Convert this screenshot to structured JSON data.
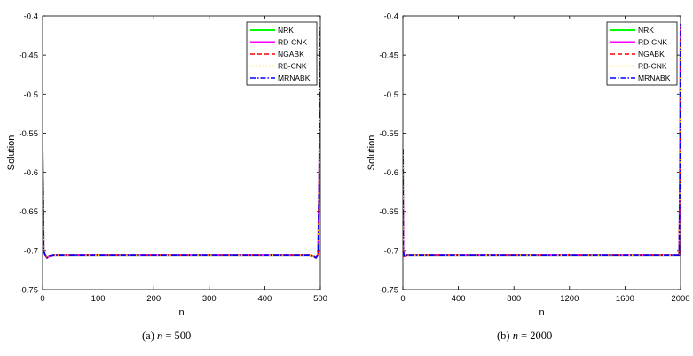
{
  "chart_data": [
    {
      "type": "line",
      "caption": {
        "label": "(a)",
        "var": "n",
        "rest": "= 500"
      },
      "xlabel": "n",
      "ylabel": "Solution",
      "xlim": [
        0,
        500
      ],
      "ylim": [
        -0.75,
        -0.4
      ],
      "xticks": [
        0,
        100,
        200,
        300,
        400,
        500
      ],
      "yticks": [
        -0.4,
        -0.45,
        -0.5,
        -0.55,
        -0.6,
        -0.65,
        -0.7,
        -0.75
      ],
      "grid": false,
      "legend_position": "top-right",
      "series": [
        {
          "name": "NRK",
          "color": "#00ff00",
          "style": "solid",
          "x": [
            0,
            1,
            2,
            4,
            8,
            12,
            20,
            100,
            200,
            300,
            400,
            480,
            488,
            492,
            496,
            498,
            499,
            500
          ],
          "y": [
            -0.57,
            -0.62,
            -0.7,
            -0.705,
            -0.709,
            -0.707,
            -0.706,
            -0.706,
            -0.706,
            -0.706,
            -0.706,
            -0.706,
            -0.707,
            -0.709,
            -0.705,
            -0.6,
            -0.5,
            -0.415
          ]
        },
        {
          "name": "RD-CNK",
          "color": "#ff00ff",
          "style": "solid",
          "x": [
            0,
            1,
            2,
            4,
            8,
            12,
            20,
            100,
            200,
            300,
            400,
            480,
            488,
            492,
            496,
            498,
            499,
            500
          ],
          "y": [
            -0.57,
            -0.62,
            -0.7,
            -0.705,
            -0.709,
            -0.707,
            -0.706,
            -0.706,
            -0.706,
            -0.706,
            -0.706,
            -0.706,
            -0.707,
            -0.709,
            -0.705,
            -0.6,
            -0.5,
            -0.415
          ]
        },
        {
          "name": "NGABK",
          "color": "#ff0000",
          "style": "dashed",
          "x": [
            0,
            1,
            2,
            4,
            8,
            12,
            20,
            100,
            200,
            300,
            400,
            480,
            488,
            492,
            496,
            498,
            499,
            500
          ],
          "y": [
            -0.57,
            -0.62,
            -0.7,
            -0.705,
            -0.709,
            -0.707,
            -0.706,
            -0.706,
            -0.706,
            -0.706,
            -0.706,
            -0.706,
            -0.707,
            -0.709,
            -0.705,
            -0.6,
            -0.5,
            -0.415
          ]
        },
        {
          "name": "RB-CNK",
          "color": "#ffd700",
          "style": "dotted",
          "x": [
            0,
            1,
            2,
            4,
            8,
            12,
            20,
            100,
            200,
            300,
            400,
            480,
            488,
            492,
            496,
            498,
            499,
            500
          ],
          "y": [
            -0.57,
            -0.62,
            -0.7,
            -0.705,
            -0.709,
            -0.707,
            -0.706,
            -0.706,
            -0.706,
            -0.706,
            -0.706,
            -0.706,
            -0.707,
            -0.709,
            -0.705,
            -0.6,
            -0.5,
            -0.415
          ]
        },
        {
          "name": "MRNABK",
          "color": "#0000ff",
          "style": "dashdot",
          "x": [
            0,
            1,
            2,
            4,
            8,
            12,
            20,
            100,
            200,
            300,
            400,
            480,
            488,
            492,
            496,
            498,
            499,
            500
          ],
          "y": [
            -0.57,
            -0.62,
            -0.7,
            -0.705,
            -0.709,
            -0.707,
            -0.706,
            -0.706,
            -0.706,
            -0.706,
            -0.706,
            -0.706,
            -0.707,
            -0.709,
            -0.705,
            -0.6,
            -0.5,
            -0.415
          ]
        }
      ]
    },
    {
      "type": "line",
      "caption": {
        "label": "(b)",
        "var": "n",
        "rest": "= 2000"
      },
      "xlabel": "n",
      "ylabel": "Solution",
      "xlim": [
        0,
        2000
      ],
      "ylim": [
        -0.75,
        -0.4
      ],
      "xticks": [
        0,
        400,
        800,
        1200,
        1600,
        2000
      ],
      "yticks": [
        -0.4,
        -0.45,
        -0.5,
        -0.55,
        -0.6,
        -0.65,
        -0.7,
        -0.75
      ],
      "grid": false,
      "legend_position": "top-right",
      "series": [
        {
          "name": "NRK",
          "color": "#00ff00",
          "style": "solid",
          "x": [
            0,
            3,
            8,
            30,
            400,
            800,
            1200,
            1600,
            1970,
            1990,
            1996,
            2000
          ],
          "y": [
            -0.57,
            -0.7,
            -0.707,
            -0.706,
            -0.706,
            -0.706,
            -0.706,
            -0.706,
            -0.706,
            -0.706,
            -0.6,
            -0.41
          ]
        },
        {
          "name": "RD-CNK",
          "color": "#ff00ff",
          "style": "solid",
          "x": [
            0,
            3,
            8,
            30,
            400,
            800,
            1200,
            1600,
            1970,
            1990,
            1996,
            2000
          ],
          "y": [
            -0.57,
            -0.7,
            -0.707,
            -0.706,
            -0.706,
            -0.706,
            -0.706,
            -0.706,
            -0.706,
            -0.706,
            -0.6,
            -0.41
          ]
        },
        {
          "name": "NGABK",
          "color": "#ff0000",
          "style": "dashed",
          "x": [
            0,
            3,
            8,
            30,
            400,
            800,
            1200,
            1600,
            1970,
            1990,
            1996,
            2000
          ],
          "y": [
            -0.57,
            -0.7,
            -0.707,
            -0.706,
            -0.706,
            -0.706,
            -0.706,
            -0.706,
            -0.706,
            -0.706,
            -0.6,
            -0.41
          ]
        },
        {
          "name": "RB-CNK",
          "color": "#ffd700",
          "style": "dotted",
          "x": [
            0,
            3,
            8,
            30,
            400,
            800,
            1200,
            1600,
            1970,
            1990,
            1996,
            2000
          ],
          "y": [
            -0.57,
            -0.7,
            -0.707,
            -0.706,
            -0.706,
            -0.706,
            -0.706,
            -0.706,
            -0.706,
            -0.706,
            -0.6,
            -0.41
          ]
        },
        {
          "name": "MRNABK",
          "color": "#0000ff",
          "style": "dashdot",
          "x": [
            0,
            3,
            8,
            30,
            400,
            800,
            1200,
            1600,
            1970,
            1990,
            1996,
            2000
          ],
          "y": [
            -0.57,
            -0.7,
            -0.707,
            -0.706,
            -0.706,
            -0.706,
            -0.706,
            -0.706,
            -0.706,
            -0.706,
            -0.6,
            -0.41
          ]
        }
      ]
    }
  ]
}
